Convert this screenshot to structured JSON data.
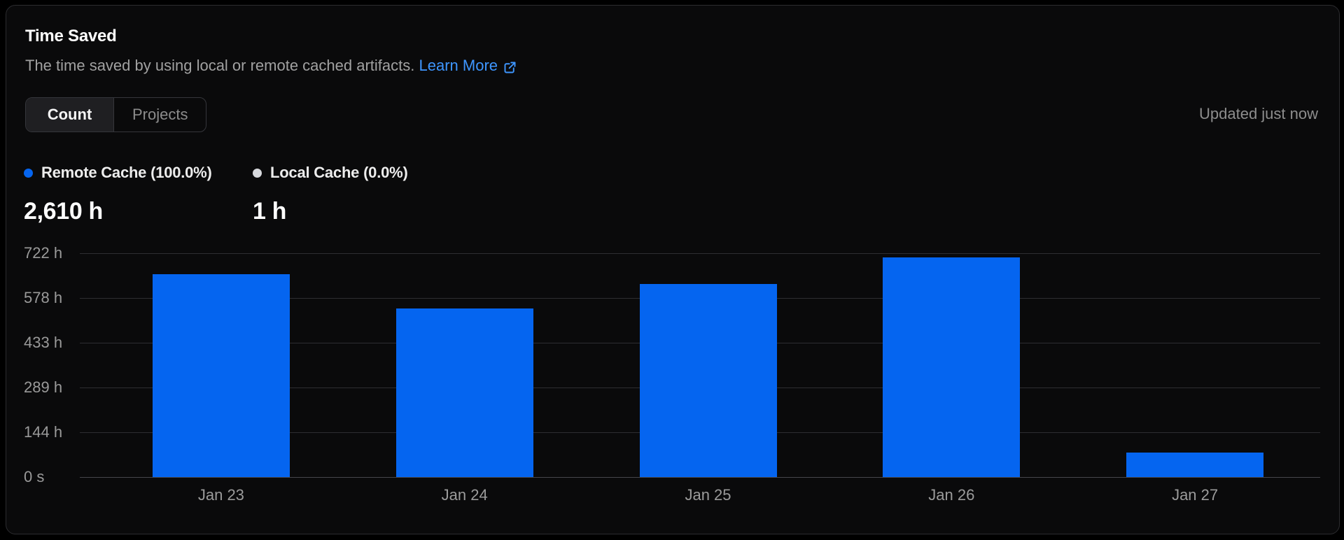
{
  "header": {
    "title": "Time Saved",
    "subtitle": "The time saved by using local or remote cached artifacts.",
    "learn_more_label": "Learn More"
  },
  "toolbar": {
    "tabs": [
      {
        "label": "Count",
        "selected": true
      },
      {
        "label": "Projects",
        "selected": false
      }
    ],
    "updated_text": "Updated just now"
  },
  "legend": {
    "items": [
      {
        "label": "Remote Cache (100.0%)",
        "value": "2,610 h",
        "color": "#0565f0"
      },
      {
        "label": "Local Cache (0.0%)",
        "value": "1 h",
        "color": "#d7d9dd"
      }
    ]
  },
  "chart_data": {
    "type": "bar",
    "title": "Time Saved",
    "categories": [
      "Jan 23",
      "Jan 24",
      "Jan 25",
      "Jan 26",
      "Jan 27"
    ],
    "series": [
      {
        "name": "Remote Cache",
        "values": [
          655,
          544,
          623,
          709,
          79
        ]
      }
    ],
    "unit": "hours",
    "ylim": [
      0,
      722
    ],
    "y_ticks": [
      {
        "value": 0,
        "label": "0 s"
      },
      {
        "value": 144,
        "label": "144 h"
      },
      {
        "value": 289,
        "label": "289 h"
      },
      {
        "value": 433,
        "label": "433 h"
      },
      {
        "value": 578,
        "label": "578 h"
      },
      {
        "value": 722,
        "label": "722 h"
      }
    ],
    "grid": true,
    "legend_position": "top-left",
    "bar_color": "#0565f0"
  },
  "colors": {
    "accent_blue": "#0565f0",
    "link_blue": "#3e96ff",
    "local_dot_gray": "#d7d9dd"
  }
}
